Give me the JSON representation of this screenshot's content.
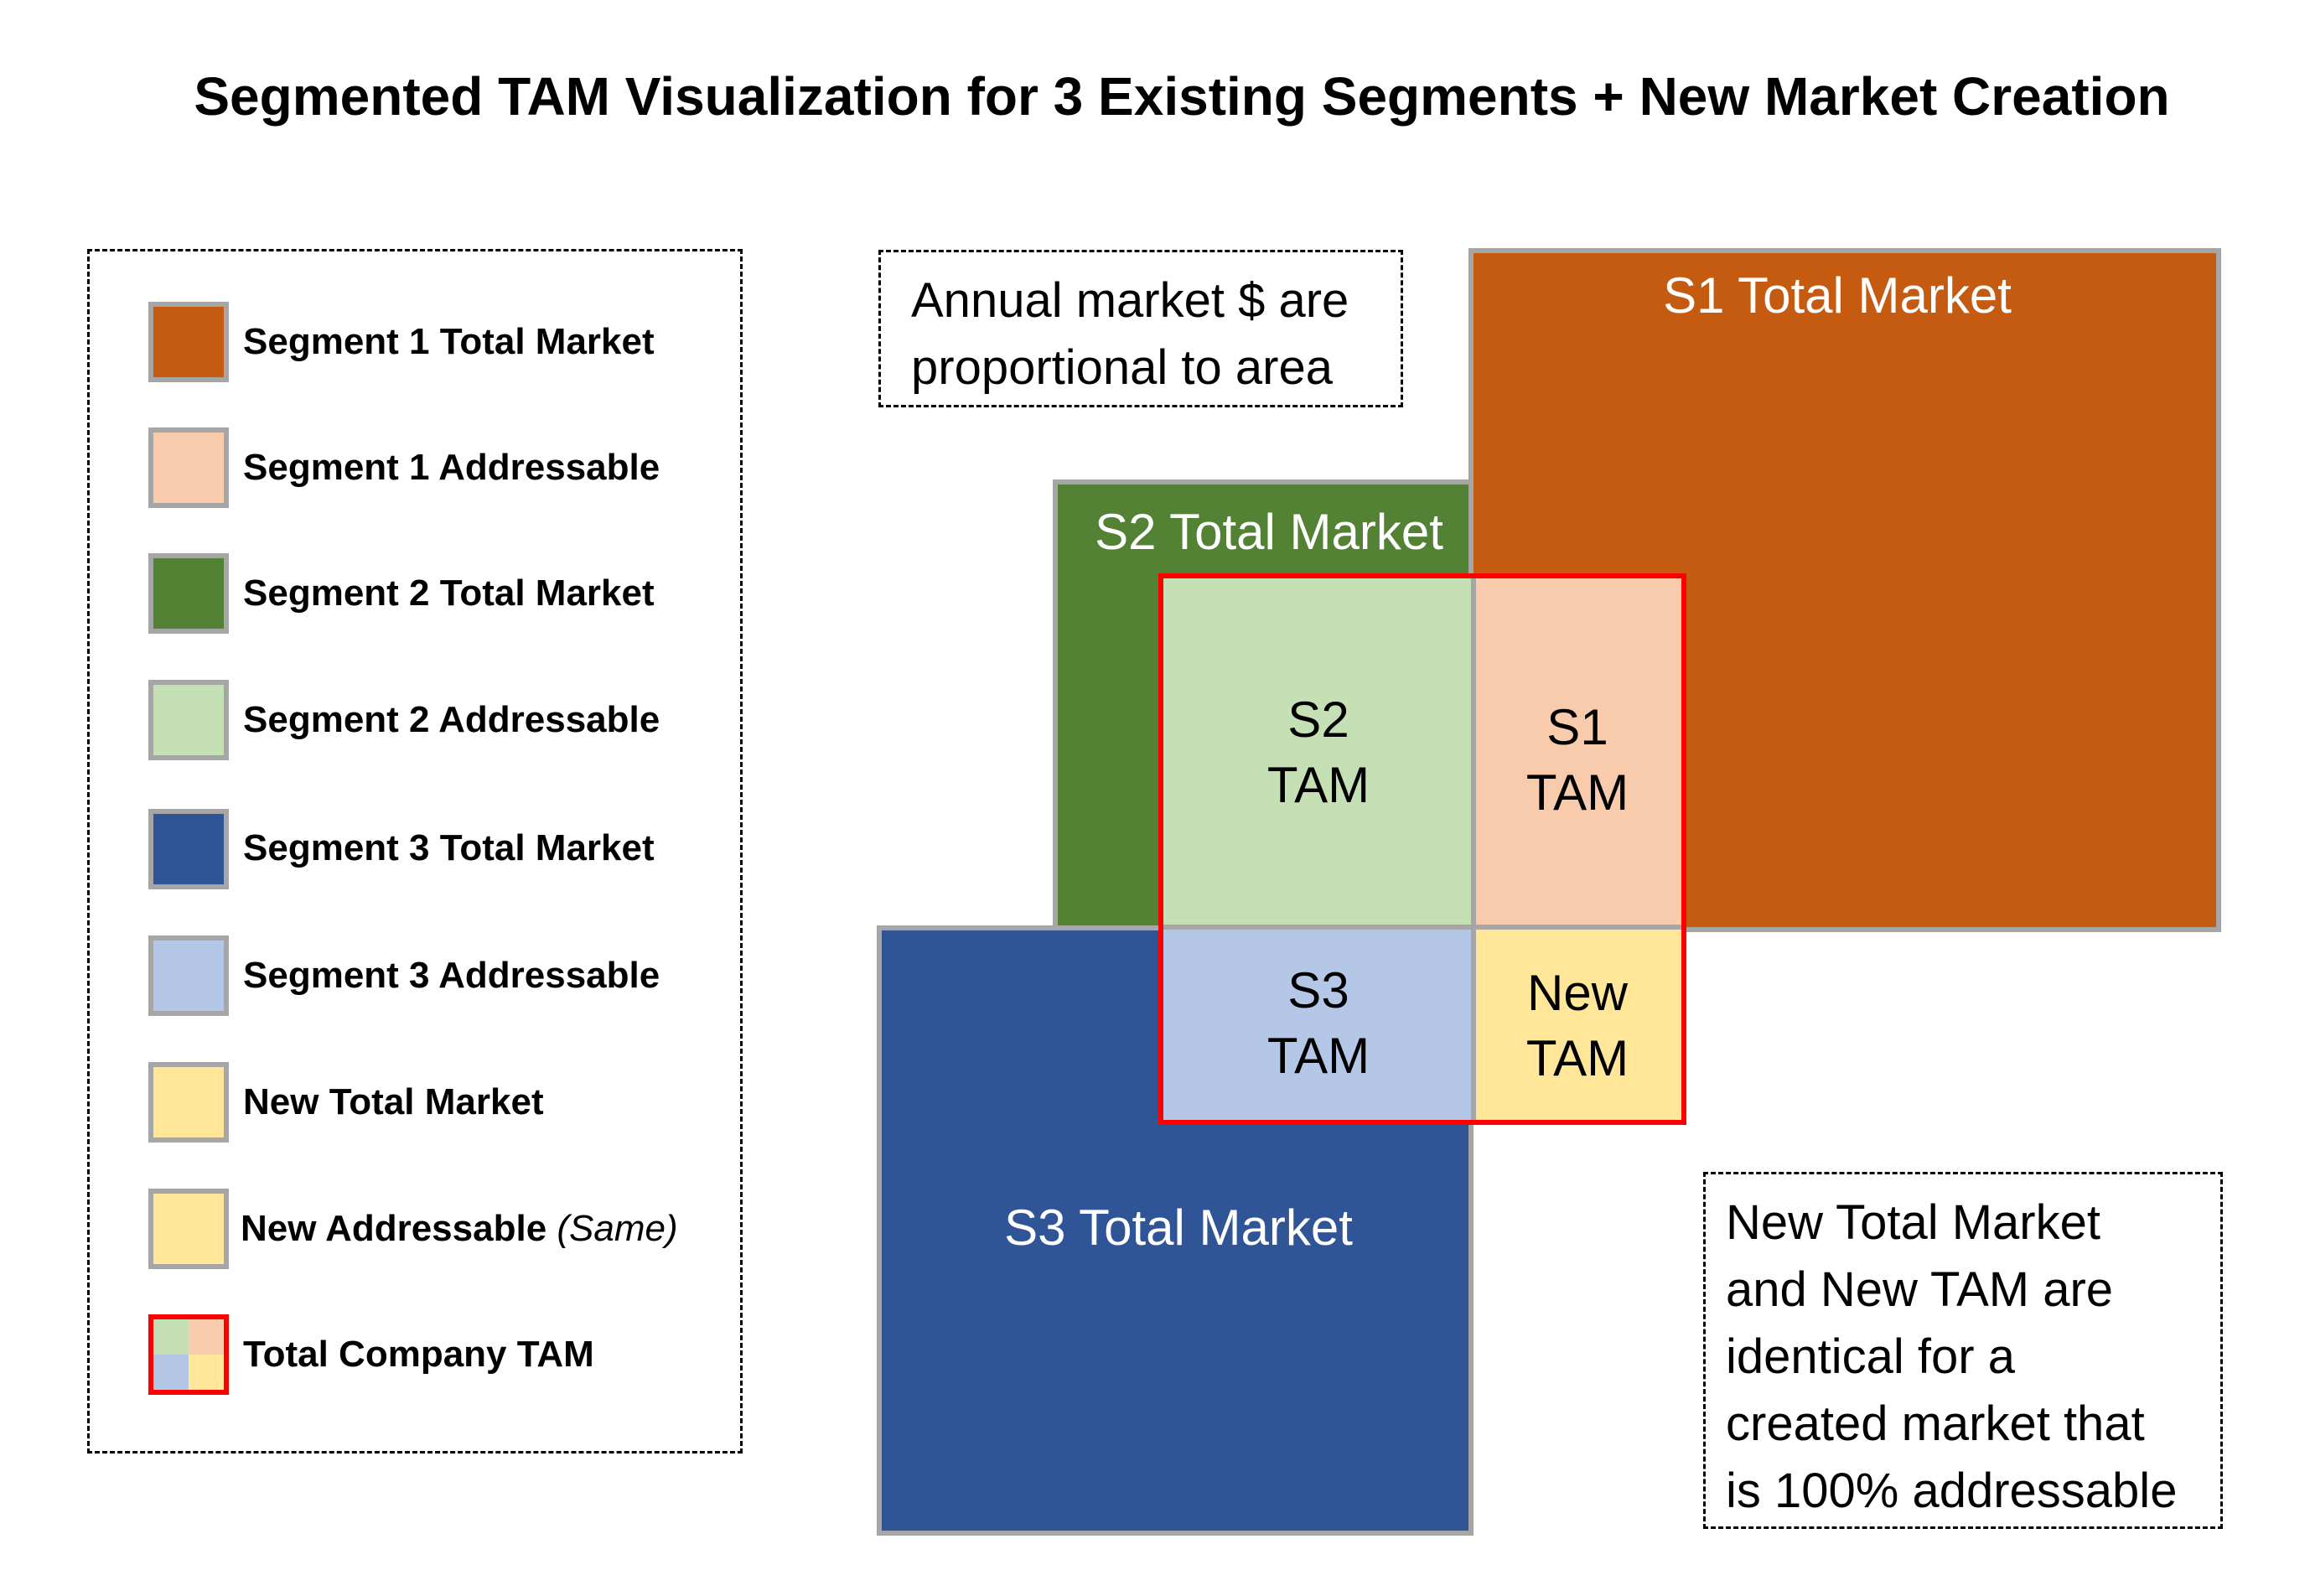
{
  "title": "Segmented TAM Visualization for 3 Existing Segments + New Market Creation",
  "legend": {
    "items": [
      {
        "label": "Segment 1 Total Market",
        "suffix": "",
        "color": "#c55a11"
      },
      {
        "label": "Segment 1 Addressable",
        "suffix": "",
        "color": "#f8cbad"
      },
      {
        "label": "Segment 2 Total Market",
        "suffix": "",
        "color": "#548235"
      },
      {
        "label": "Segment 2 Addressable",
        "suffix": "",
        "color": "#c5e0b4"
      },
      {
        "label": "Segment 3 Total Market",
        "suffix": "",
        "color": "#2f5597"
      },
      {
        "label": "Segment 3 Addressable",
        "suffix": "",
        "color": "#b4c7e7"
      },
      {
        "label": "New Total Market",
        "suffix": "",
        "color": "#ffe699"
      },
      {
        "label": "New Addressable ",
        "suffix": "(Same)",
        "color": "#ffe699"
      },
      {
        "label": "Total Company TAM",
        "suffix": "",
        "color": "composite"
      }
    ]
  },
  "notes": {
    "area": [
      "Annual market $ are",
      "proportional to area"
    ],
    "new_market": [
      "New Total Market",
      "and New TAM are",
      "identical for a",
      "created market that",
      "is 100% addressable"
    ]
  },
  "diagram": {
    "s1_total": "S1 Total Market",
    "s2_total": "S2 Total Market",
    "s3_total": "S3 Total Market",
    "s1_tam": [
      "S1",
      "TAM"
    ],
    "s2_tam": [
      "S2",
      "TAM"
    ],
    "s3_tam": [
      "S3",
      "TAM"
    ],
    "new_tam": [
      "New",
      "TAM"
    ]
  },
  "colors": {
    "s1_total": "#c55a11",
    "s1_addr": "#f8cbad",
    "s2_total": "#548235",
    "s2_addr": "#c5e0b4",
    "s3_total": "#2f5597",
    "s3_addr": "#b4c7e7",
    "new": "#ffe699",
    "tam_border": "#ff0000",
    "block_border": "#a6a6a6"
  }
}
